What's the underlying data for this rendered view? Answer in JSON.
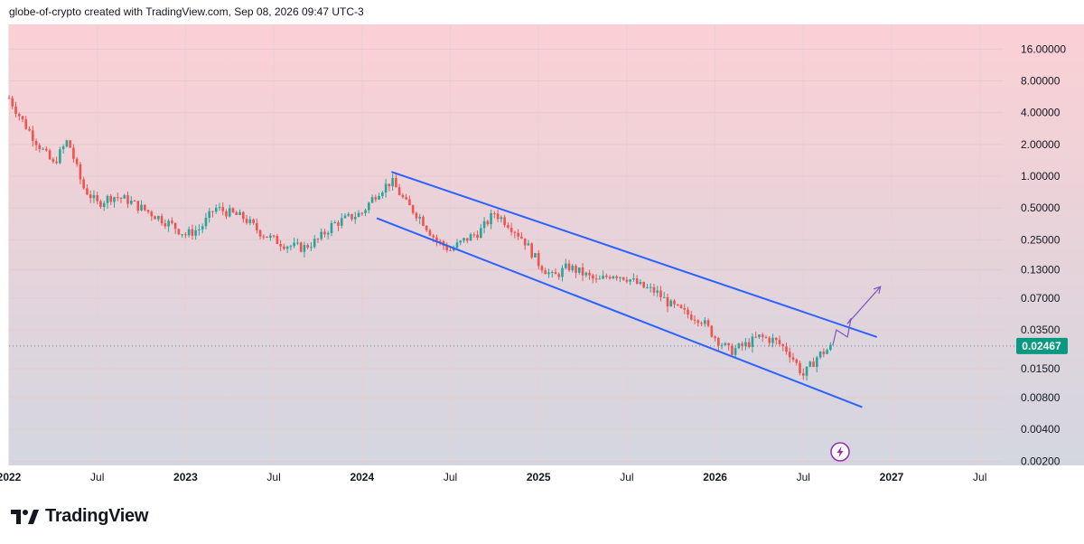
{
  "header": {
    "caption": "globe-of-crypto created with TradingView.com, Sep 08, 2026 09:47 UTC-3"
  },
  "footer": {
    "brand": "TradingView"
  },
  "chart_data": {
    "type": "candlestick",
    "title": "",
    "y_scale": "log",
    "y_ticks": [
      "16.00000",
      "8.00000",
      "4.00000",
      "2.00000",
      "1.00000",
      "0.50000",
      "0.25000",
      "0.13000",
      "0.07000",
      "0.03500",
      "0.01500",
      "0.00800",
      "0.00400",
      "0.00200"
    ],
    "x_ticks": [
      "2022",
      "Jul",
      "2023",
      "Jul",
      "2024",
      "Jul",
      "2025",
      "Jul",
      "2026",
      "Jul",
      "2027",
      "Jul"
    ],
    "last_price": "0.02467",
    "price_path": [
      [
        "2022-01",
        5.5
      ],
      [
        "2022-02",
        3.2
      ],
      [
        "2022-03",
        2.0
      ],
      [
        "2022-04",
        1.3
      ],
      [
        "2022-05",
        2.2
      ],
      [
        "2022-06",
        0.8
      ],
      [
        "2022-07",
        0.55
      ],
      [
        "2022-08",
        0.65
      ],
      [
        "2022-09",
        0.6
      ],
      [
        "2022-10",
        0.5
      ],
      [
        "2022-11",
        0.42
      ],
      [
        "2022-12",
        0.35
      ],
      [
        "2023-01",
        0.28
      ],
      [
        "2023-02",
        0.32
      ],
      [
        "2023-03",
        0.5
      ],
      [
        "2023-04",
        0.45
      ],
      [
        "2023-05",
        0.4
      ],
      [
        "2023-06",
        0.3
      ],
      [
        "2023-07",
        0.25
      ],
      [
        "2023-08",
        0.22
      ],
      [
        "2023-09",
        0.21
      ],
      [
        "2023-10",
        0.25
      ],
      [
        "2023-11",
        0.35
      ],
      [
        "2023-12",
        0.4
      ],
      [
        "2024-01",
        0.45
      ],
      [
        "2024-02",
        0.7
      ],
      [
        "2024-03",
        0.9
      ],
      [
        "2024-04",
        0.55
      ],
      [
        "2024-05",
        0.4
      ],
      [
        "2024-06",
        0.25
      ],
      [
        "2024-07",
        0.2
      ],
      [
        "2024-08",
        0.25
      ],
      [
        "2024-09",
        0.3
      ],
      [
        "2024-10",
        0.45
      ],
      [
        "2024-11",
        0.35
      ],
      [
        "2024-12",
        0.25
      ],
      [
        "2025-01",
        0.15
      ],
      [
        "2025-02",
        0.11
      ],
      [
        "2025-03",
        0.14
      ],
      [
        "2025-04",
        0.12
      ],
      [
        "2025-05",
        0.1
      ],
      [
        "2025-06",
        0.12
      ],
      [
        "2025-07",
        0.11
      ],
      [
        "2025-08",
        0.09
      ],
      [
        "2025-09",
        0.08
      ],
      [
        "2025-10",
        0.06
      ],
      [
        "2025-11",
        0.05
      ],
      [
        "2025-12",
        0.045
      ],
      [
        "2026-01",
        0.03
      ],
      [
        "2026-02",
        0.022
      ],
      [
        "2026-03",
        0.025
      ],
      [
        "2026-04",
        0.03
      ],
      [
        "2026-05",
        0.028
      ],
      [
        "2026-06",
        0.022
      ],
      [
        "2026-07",
        0.013
      ],
      [
        "2026-08",
        0.02
      ],
      [
        "2026-09",
        0.02467
      ]
    ],
    "channel": {
      "upper": [
        [
          "2024-03",
          1.1
        ],
        [
          "2026-12",
          0.03
        ]
      ],
      "lower": [
        [
          "2024-02",
          0.4
        ],
        [
          "2026-11",
          0.0065
        ]
      ]
    },
    "projection": [
      [
        "2026-09",
        0.025
      ],
      [
        "2026-09",
        0.035
      ],
      [
        "2026-10",
        0.03
      ],
      [
        "2026-10",
        0.045
      ],
      [
        "2026-10",
        0.04
      ],
      [
        "2026-12",
        0.09
      ]
    ],
    "colors": {
      "up": "#26a69a",
      "down": "#ef5350",
      "channel": "#2962ff",
      "projection": "#7e57c2",
      "price_tag": "#089981"
    }
  }
}
